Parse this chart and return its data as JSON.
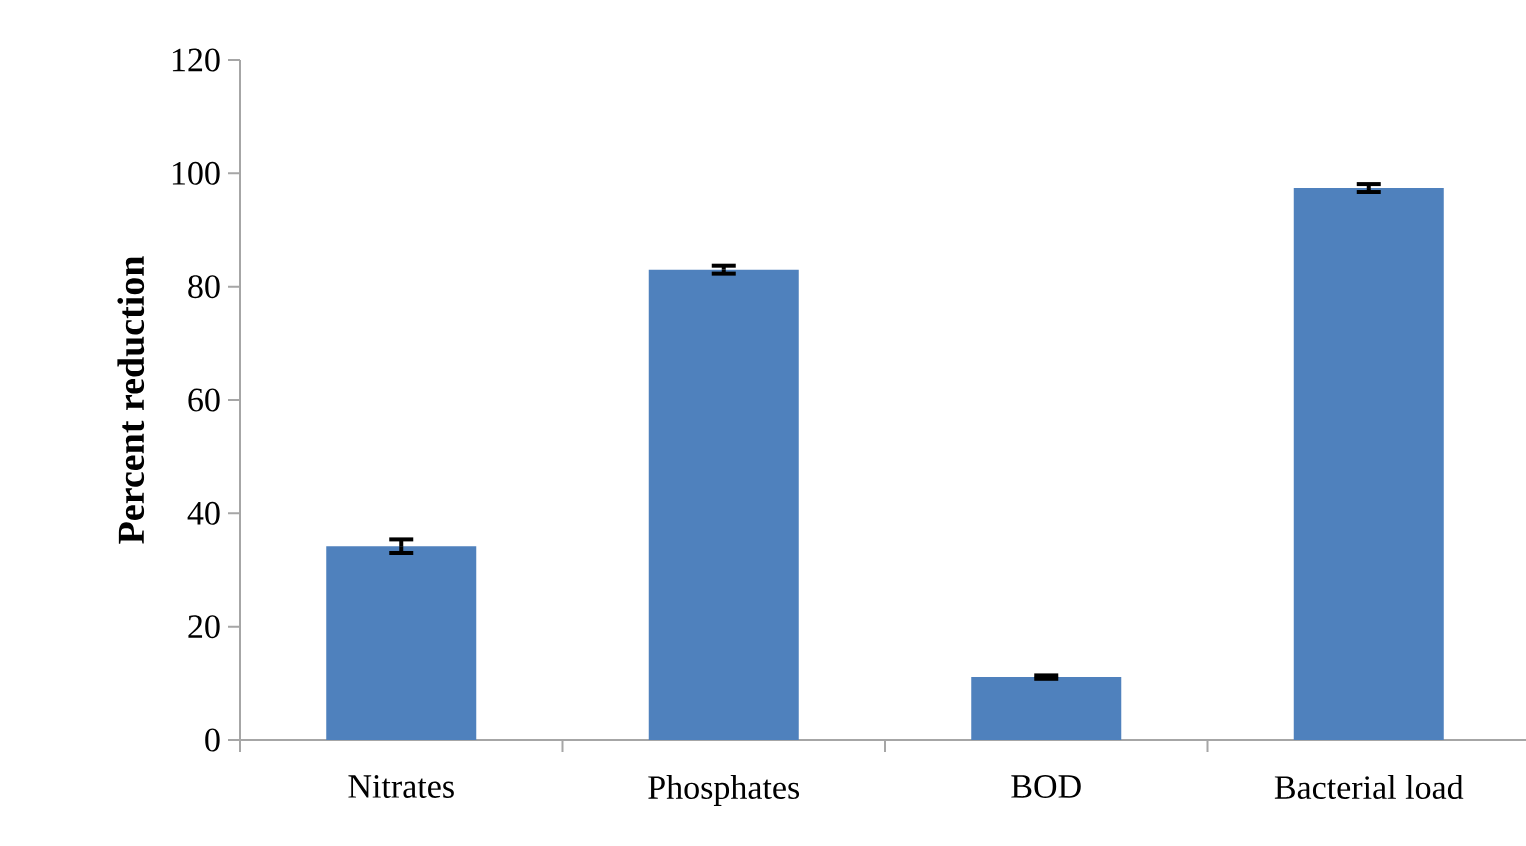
{
  "chart_data": {
    "type": "bar",
    "ylabel": "Percent reduction",
    "categories": [
      "Nitrates",
      "Phosphates",
      "BOD",
      "Bacterial load"
    ],
    "values": [
      34.2,
      83.0,
      11.1,
      97.4
    ],
    "errors": [
      1.2,
      0.7,
      0.3,
      0.7
    ],
    "color": "#4f81bd",
    "ylim": [
      0,
      120
    ],
    "yticks": [
      0,
      20,
      40,
      60,
      80,
      100,
      120
    ],
    "grid": false
  }
}
